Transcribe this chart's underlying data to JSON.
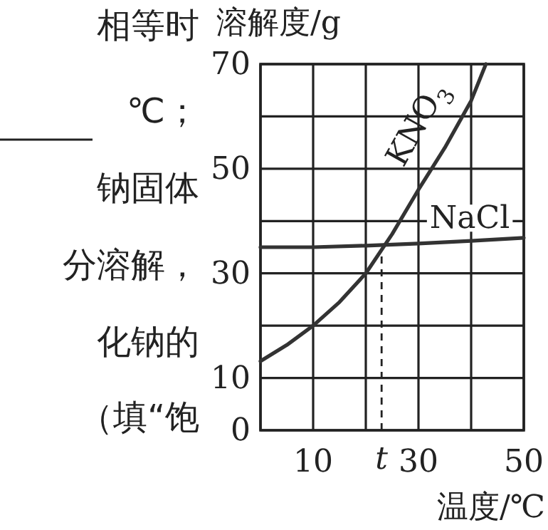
{
  "chart_data": {
    "type": "line",
    "xlabel": "温度/℃",
    "ylabel": "溶解度/g",
    "annotations": [
      "相等时",
      "℃；",
      "钠固体",
      "分溶解，",
      "化钠的",
      "（填“饱"
    ],
    "xlim": [
      0,
      50
    ],
    "ylim": [
      0,
      70
    ],
    "xticks": [
      {
        "value": 0,
        "label": null
      },
      10,
      {
        "value": 20,
        "label": null
      },
      30,
      {
        "value": 40,
        "label": null
      },
      50
    ],
    "yticks": [
      0,
      10,
      {
        "value": 20,
        "label": null
      },
      30,
      {
        "value": 40,
        "label": null
      },
      50,
      {
        "value": 60,
        "label": null
      },
      70
    ],
    "grid": true,
    "series": [
      {
        "name": "KNO$_{3}$",
        "color": "#333333",
        "x": [
          0,
          5,
          10,
          15,
          20,
          25,
          30,
          35,
          40,
          42.8
        ],
        "values": [
          13.2,
          16.3,
          20,
          24.5,
          30,
          37.5,
          46,
          54,
          63,
          70
        ]
      },
      {
        "name": "NaCl",
        "color": "#333333",
        "x": [
          0,
          10,
          20,
          30,
          40,
          50
        ],
        "values": [
          35,
          35,
          35.3,
          35.7,
          36.2,
          36.8
        ]
      }
    ],
    "ref_lines": [
      {
        "axis": "x",
        "value": 23,
        "label": "t",
        "line_style": "dashed"
      }
    ]
  }
}
